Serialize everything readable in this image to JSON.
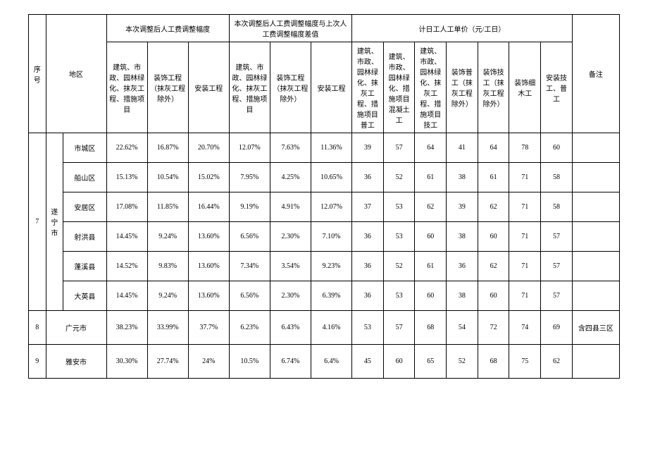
{
  "headers": {
    "seq": "序号",
    "region": "地区",
    "group1": "本次调整后人工费调整幅度",
    "group2": "本次调整后人工费调整幅度与上次人工费调整幅度差值",
    "group3": "计日工人工单价（元/工日）",
    "note": "备注",
    "g1_c1": "建筑、市政、园林绿化、抹灰工程、措施项目",
    "g1_c2": "装饰工程（抹灰工程除外）",
    "g1_c3": "安装工程",
    "g2_c1": "建筑、市政、园林绿化、抹灰工程、措施项目",
    "g2_c2": "装饰工程（抹灰工程除外）",
    "g2_c3": "安装工程",
    "g3_c1": "建筑、市政、园林绿化、抹灰工程、措施项目普工",
    "g3_c2": "建筑、市政、园林绿化、措施项目混凝土工",
    "g3_c3": "建筑、市政、园林绿化、抹灰工程、措施项目技工",
    "g3_c4": "装饰普工（抹灰工程除外）",
    "g3_c5": "装饰技工（抹灰工程除外）",
    "g3_c6": "装饰细木工",
    "g3_c7": "安装技工、普工"
  },
  "rows": [
    {
      "seq": "7",
      "city": "遂宁市",
      "district": "市城区",
      "cells": [
        "22.62%",
        "16.87%",
        "20.70%",
        "12.07%",
        "7.63%",
        "11.36%",
        "39",
        "57",
        "64",
        "41",
        "64",
        "78",
        "60"
      ],
      "note": ""
    },
    {
      "district": "船山区",
      "cells": [
        "15.13%",
        "10.54%",
        "15.02%",
        "7.95%",
        "4.25%",
        "10.65%",
        "36",
        "52",
        "61",
        "38",
        "61",
        "71",
        "58"
      ],
      "note": ""
    },
    {
      "district": "安居区",
      "cells": [
        "17.08%",
        "11.85%",
        "16.44%",
        "9.19%",
        "4.91%",
        "12.07%",
        "37",
        "53",
        "62",
        "39",
        "62",
        "71",
        "58"
      ],
      "note": ""
    },
    {
      "district": "射洪县",
      "cells": [
        "14.45%",
        "9.24%",
        "13.60%",
        "6.56%",
        "2.30%",
        "7.10%",
        "36",
        "53",
        "60",
        "38",
        "60",
        "71",
        "57"
      ],
      "note": ""
    },
    {
      "district": "蓬溪县",
      "cells": [
        "14.52%",
        "9.83%",
        "13.60%",
        "7.34%",
        "3.54%",
        "9.23%",
        "36",
        "52",
        "61",
        "36",
        "62",
        "71",
        "57"
      ],
      "note": ""
    },
    {
      "district": "大英县",
      "cells": [
        "14.45%",
        "9.24%",
        "13.60%",
        "6.56%",
        "2.30%",
        "6.39%",
        "36",
        "53",
        "60",
        "38",
        "60",
        "71",
        "57"
      ],
      "note": ""
    },
    {
      "seq": "8",
      "city": "广元市",
      "cells": [
        "38.23%",
        "33.99%",
        "37.7%",
        "6.23%",
        "6.43%",
        "4.16%",
        "53",
        "57",
        "68",
        "54",
        "72",
        "74",
        "69"
      ],
      "note": "含四县三区"
    },
    {
      "seq": "9",
      "city": "雅安市",
      "cells": [
        "30.30%",
        "27.74%",
        "24%",
        "10.5%",
        "6.74%",
        "6.4%",
        "45",
        "60",
        "65",
        "52",
        "68",
        "75",
        "62"
      ],
      "note": ""
    }
  ]
}
